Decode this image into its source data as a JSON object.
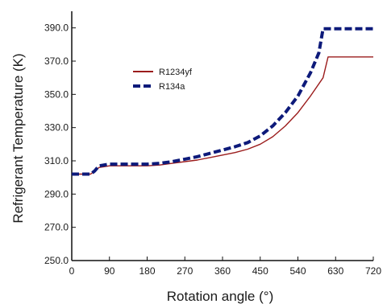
{
  "chart_data": {
    "type": "line",
    "title": "",
    "xlabel": "Rotation angle (°)",
    "ylabel": "Refrigerant Temperature (K)",
    "xlim": [
      0,
      720
    ],
    "ylim": [
      250,
      400
    ],
    "xticks": [
      "0",
      "90",
      "180",
      "270",
      "360",
      "450",
      "540",
      "630",
      "720"
    ],
    "yticks": [
      "250.0",
      "270.0",
      "290.0",
      "310.0",
      "330.0",
      "350.0",
      "370.0",
      "390.0"
    ],
    "grid": false,
    "legend_position": "upper-left",
    "series": [
      {
        "name": "R1234yf",
        "color": "#9b1c1c",
        "style": "solid",
        "x": [
          0,
          45,
          55,
          65,
          90,
          120,
          150,
          180,
          210,
          240,
          270,
          300,
          330,
          360,
          390,
          420,
          450,
          480,
          510,
          540,
          570,
          600,
          612,
          720
        ],
        "y": [
          302,
          302,
          304,
          306,
          307,
          307,
          307,
          307,
          307.5,
          308.5,
          309.5,
          310.5,
          312,
          313.5,
          315,
          317,
          320,
          324.5,
          331,
          339,
          349,
          360,
          372.5,
          372.5
        ]
      },
      {
        "name": "R134a",
        "color": "#0d1a7a",
        "style": "dashed",
        "x": [
          0,
          45,
          55,
          65,
          90,
          120,
          150,
          180,
          210,
          240,
          270,
          300,
          330,
          360,
          390,
          420,
          450,
          480,
          510,
          540,
          570,
          590,
          600,
          720
        ],
        "y": [
          302,
          302,
          304,
          307,
          308,
          308,
          308,
          308,
          308.5,
          309.5,
          311,
          312.5,
          314.5,
          316.5,
          318.5,
          321,
          325,
          331,
          339,
          349,
          363,
          375,
          389.5,
          389.5
        ]
      }
    ]
  }
}
